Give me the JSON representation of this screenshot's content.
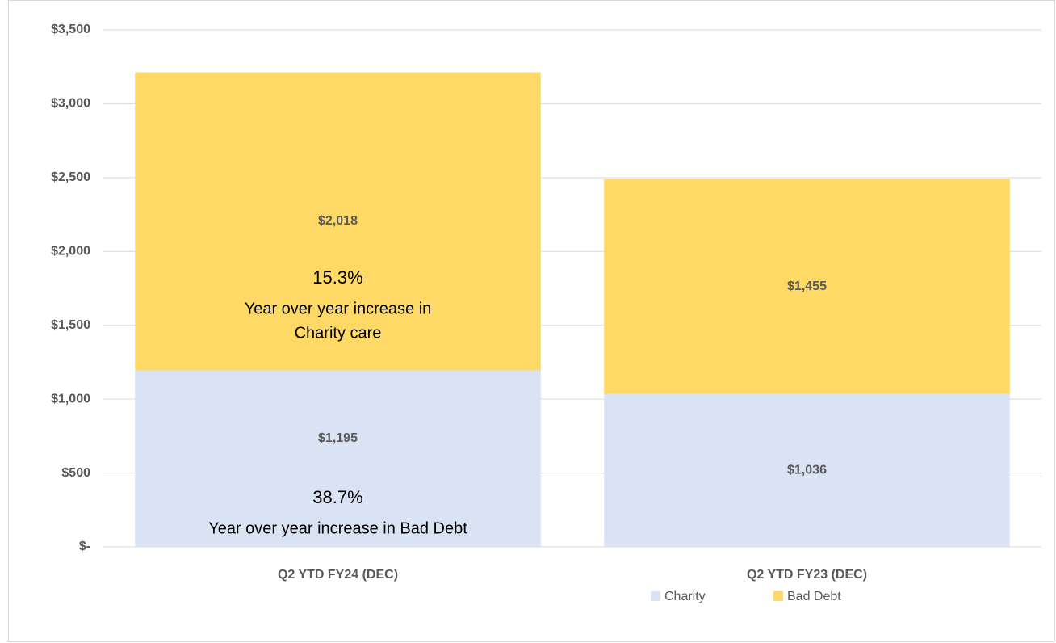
{
  "chart_data": {
    "type": "stacked-bar",
    "categories": [
      "Q2 YTD FY24 (DEC)",
      "Q2 YTD FY23 (DEC)"
    ],
    "series": [
      {
        "name": "Charity",
        "color": "#dae3f3",
        "values": [
          1195,
          1036
        ],
        "value_labels": [
          "$1,195",
          "$1,036"
        ]
      },
      {
        "name": "Bad Debt",
        "color": "#ffd966",
        "values": [
          2018,
          1455
        ],
        "value_labels": [
          "$2,018",
          "$1,455"
        ]
      }
    ],
    "ylim": [
      0,
      3500
    ],
    "yticks": [
      {
        "value": 0,
        "label": "$-"
      },
      {
        "value": 500,
        "label": "$500"
      },
      {
        "value": 1000,
        "label": "$1,000"
      },
      {
        "value": 1500,
        "label": "$1,500"
      },
      {
        "value": 2000,
        "label": "$2,000"
      },
      {
        "value": 2500,
        "label": "$2,500"
      },
      {
        "value": 3000,
        "label": "$3,000"
      },
      {
        "value": 3500,
        "label": "$3,500"
      }
    ],
    "grid": true,
    "legend": "bottom",
    "annotations": [
      "15.3%",
      "Year over year increase in",
      "Charity care",
      "38.7%",
      "Year over year increase in Bad Debt"
    ]
  }
}
